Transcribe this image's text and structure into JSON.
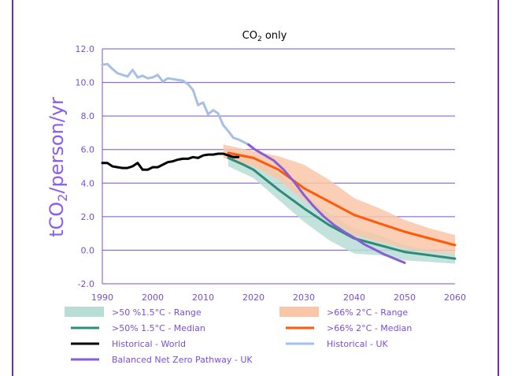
{
  "chart_data": {
    "type": "line",
    "title": "CO",
    "title_sub": "2",
    "title_suffix": " only",
    "ylabel_prefix": "tCO",
    "ylabel_sub": "2",
    "ylabel_suffix": "/person/yr",
    "xlabel": "",
    "xlim": [
      1990,
      2060
    ],
    "ylim": [
      -2.0,
      12.0
    ],
    "xticks": [
      1990,
      2000,
      2010,
      2020,
      2030,
      2040,
      2050,
      2060
    ],
    "yticks": [
      "-2.0",
      "0.0",
      "2.0",
      "4.0",
      "6.0",
      "8.0",
      "10.0",
      "12.0"
    ],
    "ytick_values": [
      -2,
      0,
      2,
      4,
      6,
      8,
      10,
      12
    ],
    "colors": {
      "range15": "#b7ddd5",
      "range2": "#f9c7a8",
      "median15": "#2e8b7a",
      "median2": "#ff5a0a",
      "world": "#000000",
      "uk": "#a7bfe6",
      "nz": "#8a5cd6",
      "grid": "#7b4fd1",
      "border": "#7030a0"
    },
    "bands": [
      {
        "name": ">50 %1.5°C - Range",
        "key": "range15",
        "x": [
          2015,
          2020,
          2025,
          2030,
          2035,
          2040,
          2045,
          2050,
          2055,
          2060
        ],
        "low": [
          5.0,
          4.3,
          3.0,
          1.7,
          0.6,
          -0.2,
          -0.3,
          -0.6,
          -0.7,
          -0.8
        ],
        "high": [
          6.0,
          5.6,
          4.6,
          3.3,
          2.2,
          1.3,
          0.9,
          0.3,
          0.0,
          -0.2
        ]
      },
      {
        "name": ">66% 2°C - Range",
        "key": "range2",
        "x": [
          2014,
          2020,
          2025,
          2030,
          2035,
          2040,
          2045,
          2050,
          2055,
          2060
        ],
        "low": [
          5.5,
          5.0,
          4.2,
          3.0,
          1.8,
          0.9,
          0.5,
          0.1,
          -0.1,
          -0.2
        ],
        "high": [
          6.3,
          5.9,
          5.6,
          5.1,
          4.2,
          3.1,
          2.5,
          1.8,
          1.3,
          0.9
        ]
      }
    ],
    "series": [
      {
        "name": ">50% 1.5°C - Median",
        "key": "median15",
        "x": [
          2015,
          2018,
          2020,
          2025,
          2030,
          2035,
          2040,
          2045,
          2050,
          2055,
          2060
        ],
        "values": [
          5.5,
          5.1,
          4.8,
          3.6,
          2.5,
          1.5,
          0.7,
          0.3,
          -0.1,
          -0.3,
          -0.5
        ]
      },
      {
        "name": ">66% 2°C - Median",
        "key": "median2",
        "x": [
          2015,
          2020,
          2025,
          2030,
          2035,
          2040,
          2045,
          2050,
          2055,
          2060
        ],
        "values": [
          5.8,
          5.5,
          4.8,
          3.7,
          2.9,
          2.1,
          1.6,
          1.1,
          0.7,
          0.3
        ]
      },
      {
        "name": "Historical - World",
        "key": "world",
        "x": [
          1990,
          1991,
          1992,
          1993,
          1994,
          1995,
          1996,
          1997,
          1998,
          1999,
          2000,
          2001,
          2002,
          2003,
          2004,
          2005,
          2006,
          2007,
          2008,
          2009,
          2010,
          2011,
          2012,
          2013,
          2014,
          2015,
          2016,
          2017
        ],
        "values": [
          5.2,
          5.2,
          5.0,
          4.95,
          4.9,
          4.9,
          5.0,
          5.2,
          4.8,
          4.8,
          4.95,
          4.95,
          5.1,
          5.25,
          5.3,
          5.4,
          5.45,
          5.45,
          5.55,
          5.5,
          5.65,
          5.7,
          5.7,
          5.75,
          5.75,
          5.65,
          5.55,
          5.55
        ]
      },
      {
        "name": "Historical - UK",
        "key": "uk",
        "x": [
          1990,
          1991,
          1992,
          1993,
          1994,
          1995,
          1996,
          1997,
          1998,
          1999,
          2000,
          2001,
          2002,
          2003,
          2004,
          2005,
          2006,
          2007,
          2008,
          2009,
          2010,
          2011,
          2012,
          2013,
          2014,
          2015,
          2016,
          2017,
          2018,
          2019,
          2020
        ],
        "values": [
          11.05,
          11.1,
          10.8,
          10.55,
          10.45,
          10.35,
          10.75,
          10.3,
          10.4,
          10.25,
          10.3,
          10.45,
          10.05,
          10.25,
          10.2,
          10.15,
          10.1,
          9.9,
          9.55,
          8.65,
          8.8,
          8.1,
          8.35,
          8.15,
          7.45,
          7.1,
          6.7,
          6.6,
          6.45,
          6.3,
          6.1
        ]
      },
      {
        "name": "Balanced Net Zero Pathway - UK",
        "key": "nz",
        "x": [
          2019,
          2020,
          2022,
          2024,
          2026,
          2028,
          2030,
          2032,
          2034,
          2036,
          2038,
          2040,
          2042,
          2044,
          2046,
          2048,
          2050
        ],
        "values": [
          6.3,
          6.05,
          5.7,
          5.35,
          4.8,
          4.1,
          3.3,
          2.6,
          2.0,
          1.5,
          1.1,
          0.75,
          0.35,
          0.05,
          -0.25,
          -0.5,
          -0.75
        ]
      }
    ],
    "legend": [
      {
        "key": "range15",
        "label": ">50 %1.5°C - Range",
        "kind": "box"
      },
      {
        "key": "range2",
        "label": ">66% 2°C - Range",
        "kind": "box"
      },
      {
        "key": "median15",
        "label": ">50% 1.5°C - Median",
        "kind": "line"
      },
      {
        "key": "median2",
        "label": ">66% 2°C - Median",
        "kind": "line"
      },
      {
        "key": "world",
        "label": "Historical - World",
        "kind": "line"
      },
      {
        "key": "uk",
        "label": "Historical - UK",
        "kind": "line"
      },
      {
        "key": "nz",
        "label": "Balanced Net Zero Pathway - UK",
        "kind": "line"
      }
    ]
  }
}
